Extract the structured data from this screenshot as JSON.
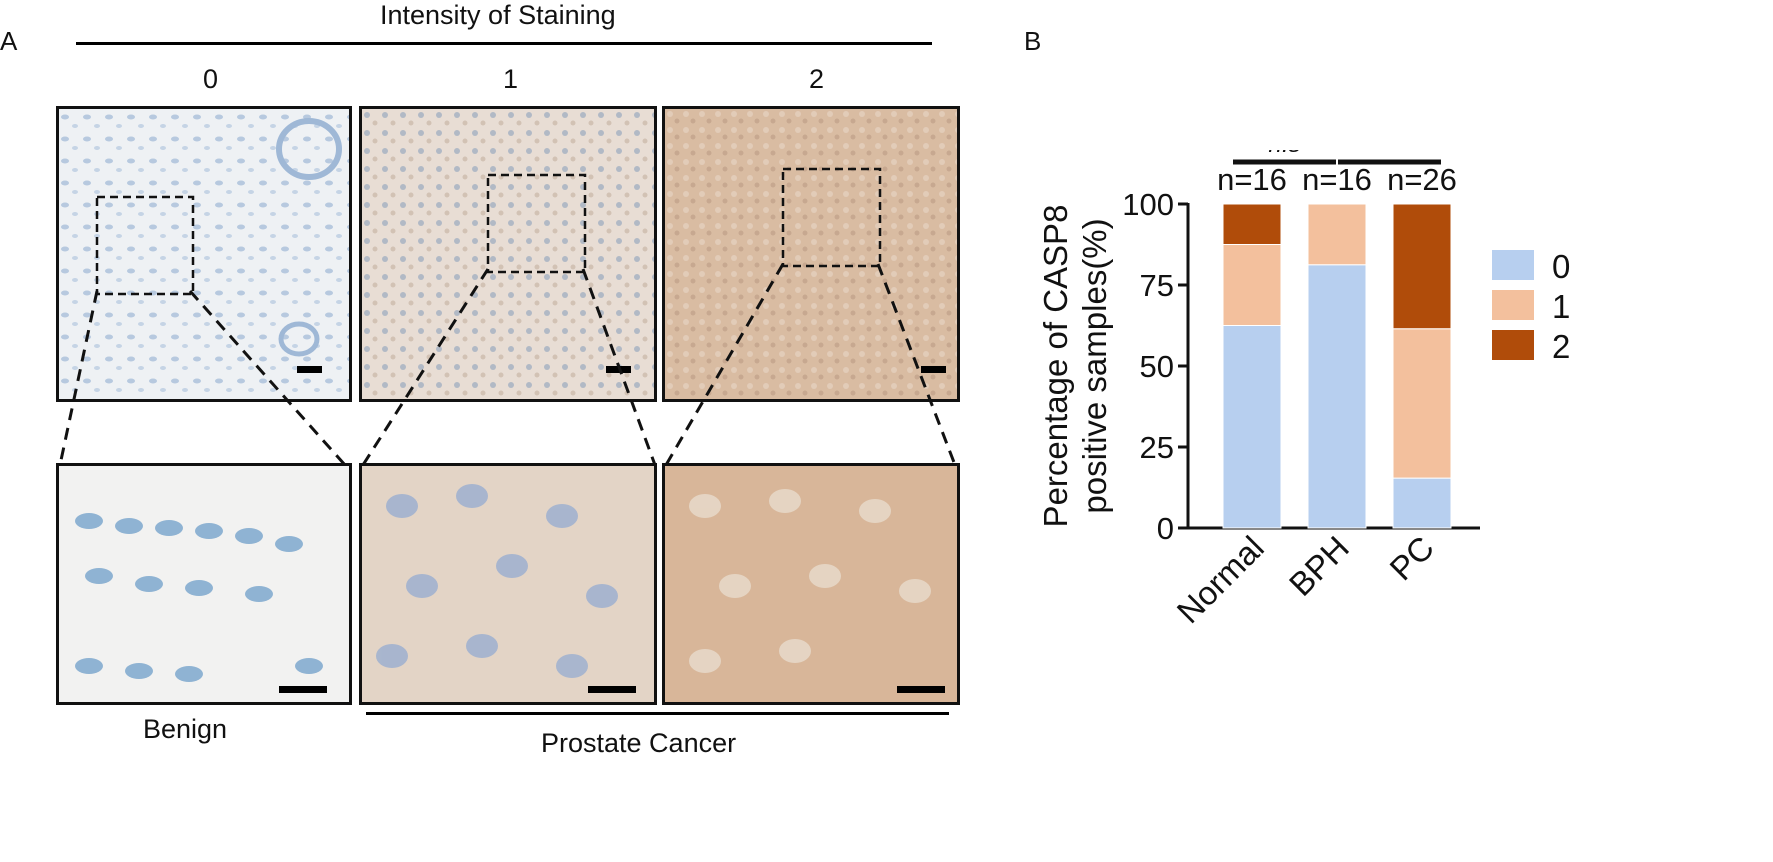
{
  "panel_a": {
    "label": "A",
    "header": "Intensity of Staining",
    "intensity_levels": [
      "0",
      "1",
      "2"
    ],
    "group_benign": "Benign",
    "group_cancer": "Prostate Cancer"
  },
  "panel_b": {
    "label": "B",
    "colors": {
      "level_0": "#b7cfef",
      "level_1": "#f3c09d",
      "level_2": "#b04c0a"
    }
  },
  "chart_data": {
    "type": "bar",
    "stacked": true,
    "categories": [
      "Normal",
      "BPH",
      "PC"
    ],
    "series": [
      {
        "name": "0",
        "values": [
          62.5,
          81.25,
          15.4
        ]
      },
      {
        "name": "1",
        "values": [
          25.0,
          18.75,
          46.1
        ]
      },
      {
        "name": "2",
        "values": [
          12.5,
          0.0,
          38.5
        ]
      }
    ],
    "ylabel_line1": "Percentage of CASP8",
    "ylabel_line2": "positive samples(%)",
    "ylim": [
      0,
      100
    ],
    "yticks": [
      "0",
      "25",
      "50",
      "75",
      "100"
    ],
    "sample_sizes": [
      "n=16",
      "n=16",
      "n=26"
    ],
    "significance": [
      {
        "pair": [
          "Normal",
          "PC"
        ],
        "label": "*"
      },
      {
        "pair": [
          "Normal",
          "BPH"
        ],
        "label": "n.s"
      },
      {
        "pair": [
          "BPH",
          "PC"
        ],
        "label": "**"
      }
    ],
    "legend_position": "right",
    "grid": false
  }
}
